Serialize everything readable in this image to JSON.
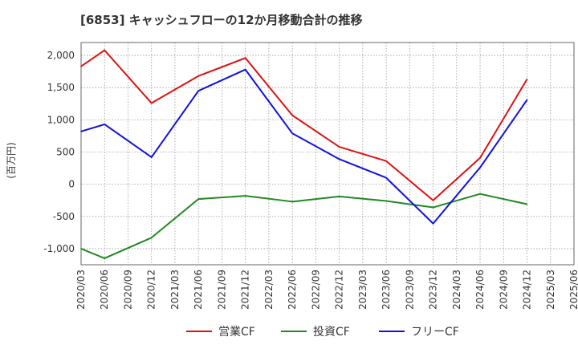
{
  "chart_data": {
    "type": "line",
    "title": "[6853]  キャッシュフローの12か月移動合計の推移",
    "ylabel": "(百万円)",
    "xlabel": "",
    "ylim": [
      -1250,
      2200
    ],
    "yticks": [
      2000,
      1500,
      1000,
      500,
      0,
      -500,
      -1000
    ],
    "ytick_labels": [
      "2,000",
      "1,500",
      "1,000",
      "500",
      "0",
      "-500",
      "-1,000"
    ],
    "categories": [
      "2020/03",
      "2020/06",
      "2020/09",
      "2020/12",
      "2021/03",
      "2021/06",
      "2021/09",
      "2021/12",
      "2022/03",
      "2022/06",
      "2022/09",
      "2022/12",
      "2023/03",
      "2023/06",
      "2023/09",
      "2023/12",
      "2024/03",
      "2024/06",
      "2024/09",
      "2024/12",
      "2025/03",
      "2025/06"
    ],
    "grid": true,
    "legend_position": "bottom",
    "series": [
      {
        "name": "営業CF",
        "color": "#dd1111",
        "values": [
          1830,
          2080,
          null,
          1260,
          null,
          1680,
          null,
          1960,
          null,
          1070,
          null,
          580,
          null,
          360,
          null,
          -250,
          null,
          410,
          null,
          1630,
          null,
          null
        ]
      },
      {
        "name": "投資CF",
        "color": "#228822",
        "values": [
          -1000,
          -1150,
          null,
          -830,
          null,
          -230,
          null,
          -180,
          null,
          -270,
          null,
          -190,
          null,
          -260,
          null,
          -360,
          null,
          -150,
          null,
          -310,
          null,
          null
        ]
      },
      {
        "name": "フリーCF",
        "color": "#1111dd",
        "values": [
          820,
          930,
          null,
          420,
          null,
          1450,
          null,
          1780,
          null,
          790,
          null,
          390,
          null,
          100,
          null,
          -610,
          null,
          260,
          null,
          1310,
          null,
          null
        ]
      }
    ]
  }
}
